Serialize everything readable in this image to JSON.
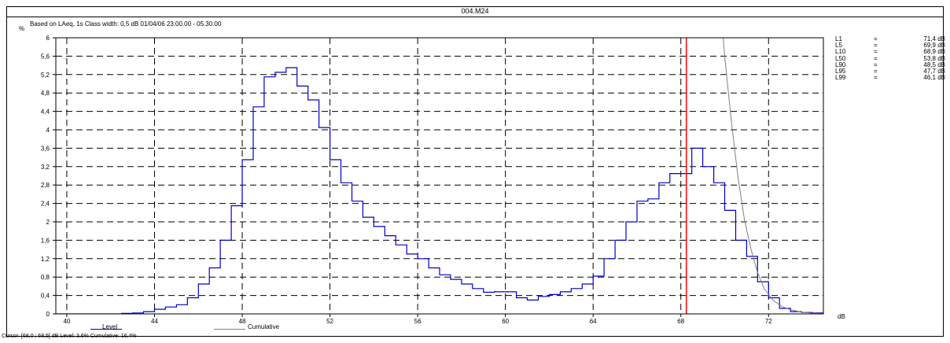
{
  "window_title": "004.M24",
  "subtitle": "Based on LAeq, 1s  Class width: 0,5 dB  01/04/06 23.00.00 - 05.30.00",
  "y_unit": "%",
  "x_unit": "dB",
  "stats": [
    {
      "label": "L1",
      "eq": "=",
      "value": "71,4 dB"
    },
    {
      "label": "L5",
      "eq": "=",
      "value": "69,9 dB"
    },
    {
      "label": "L10",
      "eq": "=",
      "value": "68,9 dB"
    },
    {
      "label": "L50",
      "eq": "=",
      "value": "53,8 dB"
    },
    {
      "label": "L90",
      "eq": "=",
      "value": "48,5 dB"
    },
    {
      "label": "L95",
      "eq": "=",
      "value": "47,7 dB"
    },
    {
      "label": "L99",
      "eq": "=",
      "value": "46,1 dB"
    }
  ],
  "legend": {
    "level": "Level",
    "cumulative": "Cumulative"
  },
  "cursor_text": "Cursor: [68,0 ; 68,5[ dB   Level: 3,6%   Cumulative: 16,4%",
  "colors": {
    "level": "#0000cc",
    "cumulative": "#808080",
    "cursor": "#ff0000",
    "grid": "#000000"
  },
  "chart_data": {
    "type": "line",
    "style": "step",
    "xlim": [
      39.5,
      74.5
    ],
    "ylim": [
      0,
      6
    ],
    "xticks": [
      40,
      44,
      48,
      52,
      56,
      60,
      64,
      68,
      72
    ],
    "xtick_labels": [
      "40",
      "44",
      "48",
      "52",
      "56",
      "60",
      "64",
      "68",
      "72"
    ],
    "yticks": [
      0,
      0.4,
      0.8,
      1.2,
      1.6,
      2,
      2.4,
      2.8,
      3.2,
      3.6,
      4,
      4.4,
      4.8,
      5.2,
      5.6,
      6
    ],
    "ytick_labels": [
      "0",
      "0,4",
      "0,8",
      "1,2",
      "1,6",
      "2",
      "2,4",
      "2,8",
      "3,2",
      "3,6",
      "4",
      "4,4",
      "4,8",
      "5,2",
      "5,6",
      "6"
    ],
    "grid": true,
    "cursor_x": 68.25,
    "series": [
      {
        "name": "Level",
        "x": [
          42.5,
          43.0,
          43.5,
          44.0,
          44.5,
          45.0,
          45.5,
          46.0,
          46.5,
          47.0,
          47.5,
          48.0,
          48.5,
          49.0,
          49.5,
          50.0,
          50.5,
          51.0,
          51.5,
          52.0,
          52.5,
          53.0,
          53.5,
          54.0,
          54.5,
          55.0,
          55.5,
          56.0,
          56.5,
          57.0,
          57.5,
          58.0,
          58.5,
          59.0,
          59.5,
          60.0,
          60.5,
          61.0,
          61.5,
          62.0,
          62.5,
          63.0,
          63.5,
          64.0,
          64.5,
          65.0,
          65.5,
          66.0,
          66.5,
          67.0,
          67.5,
          68.0,
          68.5,
          69.0,
          69.5,
          70.0,
          70.5,
          71.0,
          71.5,
          72.0,
          72.5,
          73.0,
          73.5,
          74.0
        ],
        "values": [
          0.01,
          0.02,
          0.05,
          0.1,
          0.15,
          0.2,
          0.35,
          0.65,
          1.0,
          1.6,
          2.35,
          3.35,
          4.5,
          5.15,
          5.25,
          5.35,
          4.95,
          4.65,
          4.05,
          3.35,
          2.85,
          2.45,
          2.1,
          1.9,
          1.7,
          1.5,
          1.3,
          1.2,
          1.0,
          0.85,
          0.75,
          0.65,
          0.55,
          0.47,
          0.48,
          0.48,
          0.35,
          0.3,
          0.38,
          0.42,
          0.48,
          0.55,
          0.65,
          0.82,
          1.2,
          1.6,
          2.0,
          2.45,
          2.5,
          2.85,
          3.05,
          3.05,
          3.6,
          3.2,
          2.85,
          2.25,
          1.6,
          1.25,
          0.7,
          0.35,
          0.12,
          0.05,
          0.03,
          0.02
        ]
      },
      {
        "name": "Cumulative",
        "x": [
          69.9,
          70.0,
          70.3,
          70.6,
          70.9,
          71.2,
          71.5,
          71.8,
          72.2,
          72.6,
          73.0,
          73.5,
          74.0,
          74.5
        ],
        "values": [
          6.2,
          5.6,
          4.2,
          3.0,
          2.05,
          1.4,
          0.9,
          0.55,
          0.3,
          0.16,
          0.09,
          0.04,
          0.015,
          0.005
        ]
      }
    ]
  }
}
